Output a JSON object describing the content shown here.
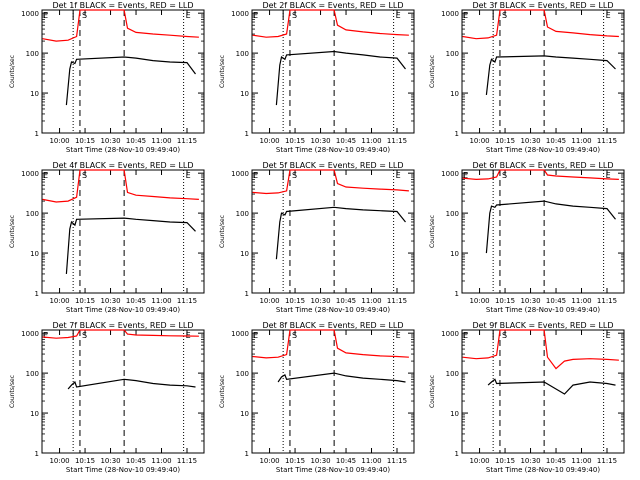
{
  "chart_data": [
    {
      "type": "line",
      "title": "Det 1f BLACK = Events, RED = LLD",
      "xlabel": "Start Time (28-Nov-10 09:49:40)",
      "ylabel": "Counts/sec",
      "y_scale": "log",
      "ylim": [
        1,
        1200
      ],
      "xlim": [
        "09:49:40",
        "11:25:00"
      ],
      "x_ticks": [
        "10:00",
        "10:15",
        "10:30",
        "10:45",
        "11:00",
        "11:15"
      ],
      "y_ticks": [
        "1",
        "10",
        "100",
        "1000"
      ],
      "markers": {
        "solid": "10:08",
        "dashed": [
          "10:12",
          "10:38"
        ],
        "dotted": [
          "10:08",
          "11:13"
        ],
        "labels": [
          "E",
          "S",
          "E"
        ]
      },
      "series": [
        {
          "name": "RED = LLD",
          "color": "#ff0000",
          "x": [
            "09:50",
            "09:58",
            "10:05",
            "10:10",
            "10:12",
            "10:38",
            "10:40",
            "10:45",
            "10:55",
            "11:05",
            "11:15",
            "11:22"
          ],
          "y": [
            230,
            200,
            210,
            260,
            1200,
            1200,
            420,
            330,
            300,
            280,
            260,
            250
          ]
        },
        {
          "name": "BLACK = Events",
          "color": "#000000",
          "x": [
            "10:04",
            "10:06",
            "10:07",
            "10:09",
            "10:10",
            "10:38",
            "10:45",
            "10:55",
            "11:05",
            "11:15",
            "11:20"
          ],
          "y": [
            5,
            40,
            60,
            55,
            70,
            80,
            75,
            65,
            60,
            58,
            30
          ]
        }
      ]
    },
    {
      "type": "line",
      "title": "Det 2f BLACK = Events, RED = LLD",
      "xlabel": "Start Time (28-Nov-10 09:49:40)",
      "ylabel": "Counts/sec",
      "y_scale": "log",
      "ylim": [
        1,
        1200
      ],
      "xlim": [
        "09:49:40",
        "11:25:00"
      ],
      "x_ticks": [
        "10:00",
        "10:15",
        "10:30",
        "10:45",
        "11:00",
        "11:15"
      ],
      "y_ticks": [
        "1",
        "10",
        "100",
        "1000"
      ],
      "markers": {
        "solid": "10:08",
        "dashed": [
          "10:12",
          "10:38"
        ],
        "dotted": [
          "10:08",
          "11:13"
        ],
        "labels": [
          "E",
          "S",
          "E"
        ]
      },
      "series": [
        {
          "name": "RED = LLD",
          "color": "#ff0000",
          "x": [
            "09:50",
            "09:58",
            "10:05",
            "10:10",
            "10:12",
            "10:38",
            "10:40",
            "10:45",
            "10:55",
            "11:05",
            "11:15",
            "11:22"
          ],
          "y": [
            280,
            250,
            260,
            300,
            1200,
            1200,
            500,
            380,
            340,
            310,
            290,
            280
          ]
        },
        {
          "name": "BLACK = Events",
          "color": "#000000",
          "x": [
            "10:04",
            "10:06",
            "10:07",
            "10:09",
            "10:10",
            "10:38",
            "10:45",
            "10:55",
            "11:05",
            "11:15",
            "11:20"
          ],
          "y": [
            5,
            50,
            80,
            70,
            90,
            110,
            100,
            90,
            80,
            75,
            40
          ]
        }
      ]
    },
    {
      "type": "line",
      "title": "Det 3f BLACK = Events, RED = LLD",
      "xlabel": "Start Time (28-Nov-10 09:49:40)",
      "ylabel": "Counts/sec",
      "y_scale": "log",
      "ylim": [
        1,
        1200
      ],
      "xlim": [
        "09:49:40",
        "11:25:00"
      ],
      "x_ticks": [
        "10:00",
        "10:15",
        "10:30",
        "10:45",
        "11:00",
        "11:15"
      ],
      "y_ticks": [
        "1",
        "10",
        "100",
        "1000"
      ],
      "markers": {
        "solid": "10:08",
        "dashed": [
          "10:12",
          "10:38"
        ],
        "dotted": [
          "10:08",
          "11:13"
        ],
        "labels": [
          "E",
          "S",
          "E"
        ]
      },
      "series": [
        {
          "name": "RED = LLD",
          "color": "#ff0000",
          "x": [
            "09:50",
            "09:58",
            "10:05",
            "10:10",
            "10:12",
            "10:38",
            "10:40",
            "10:45",
            "10:55",
            "11:05",
            "11:15",
            "11:22"
          ],
          "y": [
            260,
            230,
            240,
            280,
            1200,
            1200,
            450,
            350,
            320,
            290,
            270,
            260
          ]
        },
        {
          "name": "BLACK = Events",
          "color": "#000000",
          "x": [
            "10:04",
            "10:06",
            "10:07",
            "10:09",
            "10:10",
            "10:38",
            "10:45",
            "10:55",
            "11:05",
            "11:15",
            "11:20"
          ],
          "y": [
            9,
            50,
            70,
            60,
            80,
            85,
            80,
            75,
            70,
            65,
            40
          ]
        }
      ]
    },
    {
      "type": "line",
      "title": "Det 4f BLACK = Events, RED = LLD",
      "xlabel": "Start Time (28-Nov-10 09:49:40)",
      "ylabel": "Counts/sec",
      "y_scale": "log",
      "ylim": [
        1,
        1200
      ],
      "xlim": [
        "09:49:40",
        "11:25:00"
      ],
      "x_ticks": [
        "10:00",
        "10:15",
        "10:30",
        "10:45",
        "11:00",
        "11:15"
      ],
      "y_ticks": [
        "1",
        "10",
        "100",
        "1000"
      ],
      "markers": {
        "solid": "10:08",
        "dashed": [
          "10:12",
          "10:38"
        ],
        "dotted": [
          "10:08",
          "11:13"
        ],
        "labels": [
          "E",
          "S",
          "E"
        ]
      },
      "series": [
        {
          "name": "RED = LLD",
          "color": "#ff0000",
          "x": [
            "09:50",
            "09:58",
            "10:05",
            "10:10",
            "10:12",
            "10:38",
            "10:40",
            "10:45",
            "10:55",
            "11:05",
            "11:15",
            "11:22"
          ],
          "y": [
            220,
            190,
            200,
            250,
            1200,
            1200,
            330,
            280,
            260,
            240,
            230,
            220
          ]
        },
        {
          "name": "BLACK = Events",
          "color": "#000000",
          "x": [
            "10:04",
            "10:06",
            "10:07",
            "10:09",
            "10:10",
            "10:38",
            "10:45",
            "10:55",
            "11:05",
            "11:15",
            "11:20"
          ],
          "y": [
            3,
            40,
            60,
            50,
            70,
            75,
            70,
            65,
            60,
            58,
            35
          ]
        }
      ]
    },
    {
      "type": "line",
      "title": "Det 5f BLACK = Events, RED = LLD",
      "xlabel": "Start Time (28-Nov-10 09:49:40)",
      "ylabel": "Counts/sec",
      "y_scale": "log",
      "ylim": [
        1,
        1200
      ],
      "xlim": [
        "09:49:40",
        "11:25:00"
      ],
      "x_ticks": [
        "10:00",
        "10:15",
        "10:30",
        "10:45",
        "11:00",
        "11:15"
      ],
      "y_ticks": [
        "1",
        "10",
        "100",
        "1000"
      ],
      "markers": {
        "solid": "10:08",
        "dashed": [
          "10:12",
          "10:38"
        ],
        "dotted": [
          "10:08",
          "11:13"
        ],
        "labels": [
          "E",
          "S",
          "E"
        ]
      },
      "series": [
        {
          "name": "RED = LLD",
          "color": "#ff0000",
          "x": [
            "09:50",
            "09:58",
            "10:05",
            "10:10",
            "10:12",
            "10:38",
            "10:40",
            "10:45",
            "10:55",
            "11:05",
            "11:15",
            "11:22"
          ],
          "y": [
            330,
            310,
            320,
            360,
            1200,
            1200,
            550,
            450,
            420,
            400,
            380,
            360
          ]
        },
        {
          "name": "BLACK = Events",
          "color": "#000000",
          "x": [
            "10:04",
            "10:06",
            "10:07",
            "10:09",
            "10:10",
            "10:38",
            "10:45",
            "10:55",
            "11:05",
            "11:15",
            "11:20"
          ],
          "y": [
            7,
            60,
            100,
            90,
            110,
            140,
            130,
            120,
            115,
            110,
            60
          ]
        }
      ]
    },
    {
      "type": "line",
      "title": "Det 6f BLACK = Events, RED = LLD",
      "xlabel": "Start Time (28-Nov-10 09:49:40)",
      "ylabel": "Counts/sec",
      "y_scale": "log",
      "ylim": [
        1,
        1200
      ],
      "xlim": [
        "09:49:40",
        "11:25:00"
      ],
      "x_ticks": [
        "10:00",
        "10:15",
        "10:30",
        "10:45",
        "11:00",
        "11:15"
      ],
      "y_ticks": [
        "1",
        "10",
        "100",
        "1000"
      ],
      "markers": {
        "solid": "10:08",
        "dashed": [
          "10:12",
          "10:38"
        ],
        "dotted": [
          "10:08",
          "11:13"
        ],
        "labels": [
          "E",
          "S",
          "E"
        ]
      },
      "series": [
        {
          "name": "RED = LLD",
          "color": "#ff0000",
          "x": [
            "09:50",
            "09:58",
            "10:05",
            "10:10",
            "10:12",
            "10:38",
            "10:40",
            "10:45",
            "10:55",
            "11:05",
            "11:15",
            "11:22"
          ],
          "y": [
            750,
            700,
            720,
            800,
            1200,
            1200,
            900,
            850,
            800,
            760,
            720,
            700
          ]
        },
        {
          "name": "BLACK = Events",
          "color": "#000000",
          "x": [
            "10:04",
            "10:06",
            "10:07",
            "10:09",
            "10:10",
            "10:38",
            "10:45",
            "10:55",
            "11:05",
            "11:15",
            "11:20"
          ],
          "y": [
            10,
            100,
            150,
            140,
            160,
            200,
            170,
            150,
            140,
            130,
            70
          ]
        }
      ]
    },
    {
      "type": "line",
      "title": "Det 7f BLACK = Events, RED = LLD",
      "xlabel": "Start Time (28-Nov-10 09:49:40)",
      "ylabel": "Counts/sec",
      "y_scale": "log",
      "ylim": [
        1,
        1200
      ],
      "xlim": [
        "09:49:40",
        "11:25:00"
      ],
      "x_ticks": [
        "10:00",
        "10:15",
        "10:30",
        "10:45",
        "11:00",
        "11:15"
      ],
      "y_ticks": [
        "1",
        "10",
        "100",
        "1000"
      ],
      "markers": {
        "solid": "10:08",
        "dashed": [
          "10:12",
          "10:38"
        ],
        "dotted": [
          "10:08",
          "11:13"
        ],
        "labels": [
          "E",
          "S",
          "E"
        ]
      },
      "series": [
        {
          "name": "RED = LLD",
          "color": "#ff0000",
          "x": [
            "09:50",
            "09:58",
            "10:05",
            "10:10",
            "10:12",
            "10:38",
            "10:40",
            "10:45",
            "10:55",
            "11:05",
            "11:15",
            "11:22"
          ],
          "y": [
            800,
            750,
            780,
            850,
            1200,
            1200,
            950,
            900,
            880,
            860,
            850,
            840
          ]
        },
        {
          "name": "BLACK = Events",
          "color": "#000000",
          "x": [
            "10:05",
            "10:07",
            "10:09",
            "10:10",
            "10:38",
            "10:45",
            "10:55",
            "11:05",
            "11:15",
            "11:20"
          ],
          "y": [
            40,
            50,
            60,
            45,
            70,
            65,
            55,
            50,
            48,
            45
          ]
        }
      ]
    },
    {
      "type": "line",
      "title": "Det 8f BLACK = Events, RED = LLD",
      "xlabel": "Start Time (28-Nov-10 09:49:40)",
      "ylabel": "Counts/sec",
      "y_scale": "log",
      "ylim": [
        1,
        1200
      ],
      "xlim": [
        "09:49:40",
        "11:25:00"
      ],
      "x_ticks": [
        "10:00",
        "10:15",
        "10:30",
        "10:45",
        "11:00",
        "11:15"
      ],
      "y_ticks": [
        "1",
        "10",
        "100",
        "1000"
      ],
      "markers": {
        "solid": "10:08",
        "dashed": [
          "10:12",
          "10:38"
        ],
        "dotted": [
          "10:08",
          "11:13"
        ],
        "labels": [
          "E",
          "S",
          "E"
        ]
      },
      "series": [
        {
          "name": "RED = LLD",
          "color": "#ff0000",
          "x": [
            "09:50",
            "09:58",
            "10:05",
            "10:10",
            "10:12",
            "10:38",
            "10:40",
            "10:45",
            "10:55",
            "11:05",
            "11:15",
            "11:22"
          ],
          "y": [
            260,
            240,
            250,
            290,
            1200,
            1200,
            420,
            320,
            290,
            270,
            260,
            250
          ]
        },
        {
          "name": "BLACK = Events",
          "color": "#000000",
          "x": [
            "10:05",
            "10:07",
            "10:09",
            "10:10",
            "10:38",
            "10:45",
            "10:55",
            "11:05",
            "11:15",
            "11:20"
          ],
          "y": [
            60,
            80,
            90,
            70,
            100,
            85,
            75,
            70,
            65,
            60
          ]
        }
      ]
    },
    {
      "type": "line",
      "title": "Det 9f BLACK = Events, RED = LLD",
      "xlabel": "Start Time (28-Nov-10 09:49:40)",
      "ylabel": "Counts/sec",
      "y_scale": "log",
      "ylim": [
        1,
        1200
      ],
      "xlim": [
        "09:49:40",
        "11:25:00"
      ],
      "x_ticks": [
        "10:00",
        "10:15",
        "10:30",
        "10:45",
        "11:00",
        "11:15"
      ],
      "y_ticks": [
        "1",
        "10",
        "100",
        "1000"
      ],
      "markers": {
        "solid": "10:08",
        "dashed": [
          "10:12",
          "10:38"
        ],
        "dotted": [
          "10:08",
          "11:13"
        ],
        "labels": [
          "E",
          "S",
          "E"
        ]
      },
      "series": [
        {
          "name": "RED = LLD",
          "color": "#ff0000",
          "x": [
            "09:50",
            "09:58",
            "10:05",
            "10:10",
            "10:12",
            "10:38",
            "10:40",
            "10:45",
            "10:50",
            "10:55",
            "11:05",
            "11:15",
            "11:22"
          ],
          "y": [
            250,
            230,
            240,
            280,
            1200,
            1200,
            250,
            130,
            200,
            220,
            230,
            220,
            210
          ]
        },
        {
          "name": "BLACK = Events",
          "color": "#000000",
          "x": [
            "10:05",
            "10:07",
            "10:09",
            "10:10",
            "10:38",
            "10:45",
            "10:50",
            "10:55",
            "11:05",
            "11:15",
            "11:20"
          ],
          "y": [
            50,
            60,
            70,
            55,
            60,
            40,
            30,
            50,
            60,
            55,
            50
          ]
        }
      ]
    }
  ]
}
